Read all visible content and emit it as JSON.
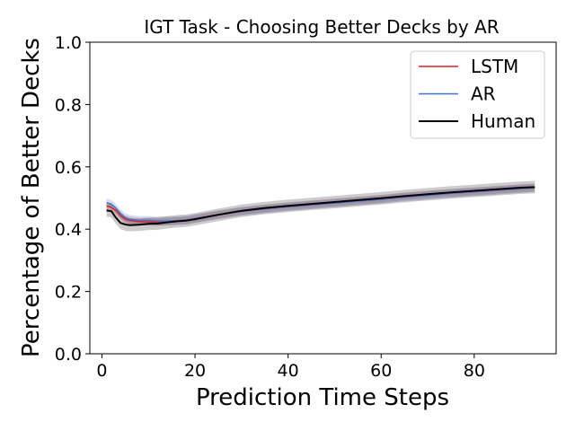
{
  "chart_data": {
    "type": "line",
    "title": "IGT Task - Choosing Better Decks by AR",
    "xlabel": "Prediction Time Steps",
    "ylabel": "Percentage of Better Decks",
    "xlim": [
      -2.6,
      97.6
    ],
    "ylim": [
      0.0,
      1.0
    ],
    "xticks": [
      0,
      20,
      40,
      60,
      80
    ],
    "yticks": [
      0.0,
      0.2,
      0.4,
      0.6,
      0.8,
      1.0
    ],
    "xtick_labels": [
      "0",
      "20",
      "40",
      "60",
      "80"
    ],
    "ytick_labels": [
      "0.0",
      "0.2",
      "0.4",
      "0.6",
      "0.8",
      "1.0"
    ],
    "grid": false,
    "legend_position": "top-right",
    "series": [
      {
        "name": "LSTM",
        "color": "#d62728",
        "x": [
          1,
          2,
          3,
          4,
          5,
          6,
          8,
          10,
          12,
          14,
          16,
          18,
          20,
          25,
          30,
          35,
          40,
          45,
          50,
          55,
          60,
          65,
          70,
          75,
          80,
          85,
          90,
          93
        ],
        "y": [
          0.475,
          0.47,
          0.46,
          0.443,
          0.432,
          0.428,
          0.424,
          0.424,
          0.422,
          0.424,
          0.426,
          0.428,
          0.433,
          0.447,
          0.458,
          0.466,
          0.473,
          0.479,
          0.485,
          0.491,
          0.497,
          0.505,
          0.511,
          0.516,
          0.521,
          0.526,
          0.531,
          0.533
        ],
        "band": 0.012
      },
      {
        "name": "AR",
        "color": "#4472c4",
        "x": [
          1,
          2,
          3,
          4,
          5,
          6,
          8,
          10,
          12,
          14,
          16,
          18,
          20,
          25,
          30,
          35,
          40,
          45,
          50,
          55,
          60,
          65,
          70,
          75,
          80,
          85,
          90,
          93
        ],
        "y": [
          0.485,
          0.48,
          0.467,
          0.45,
          0.437,
          0.432,
          0.428,
          0.428,
          0.426,
          0.426,
          0.427,
          0.429,
          0.434,
          0.446,
          0.457,
          0.465,
          0.472,
          0.478,
          0.484,
          0.49,
          0.496,
          0.503,
          0.509,
          0.515,
          0.52,
          0.525,
          0.53,
          0.533
        ],
        "band": 0.014
      },
      {
        "name": "Human",
        "color": "#000000",
        "x": [
          1,
          2,
          3,
          4,
          5,
          6,
          8,
          10,
          12,
          14,
          16,
          18,
          20,
          25,
          30,
          35,
          40,
          45,
          50,
          55,
          60,
          65,
          70,
          75,
          80,
          85,
          90,
          93
        ],
        "y": [
          0.46,
          0.458,
          0.437,
          0.42,
          0.415,
          0.413,
          0.414,
          0.417,
          0.418,
          0.422,
          0.425,
          0.427,
          0.432,
          0.446,
          0.459,
          0.468,
          0.475,
          0.481,
          0.487,
          0.493,
          0.499,
          0.506,
          0.512,
          0.518,
          0.523,
          0.528,
          0.533,
          0.535
        ],
        "band": 0.02
      }
    ]
  }
}
